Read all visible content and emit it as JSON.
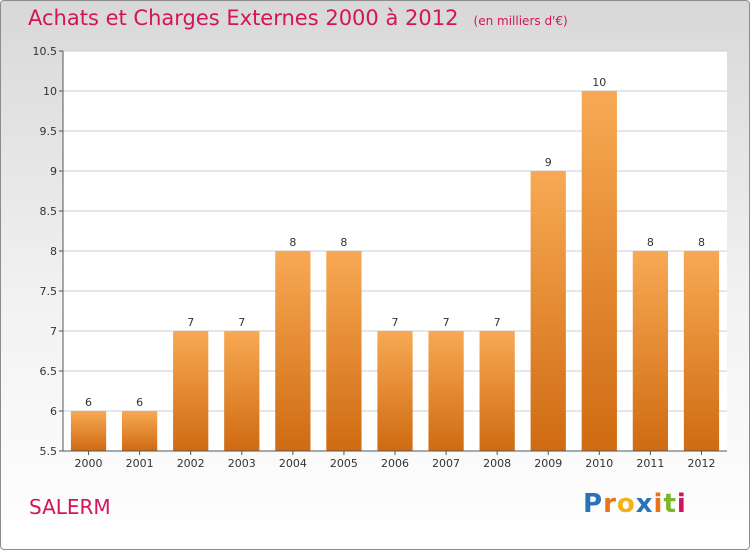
{
  "header": {
    "title": "Achats et Charges Externes 2000 à 2012",
    "subtitle": "(en milliers d'€)"
  },
  "footer": {
    "commune": "SALERM",
    "logo_text": "Proxiti",
    "logo_colors": [
      "#2b73b9",
      "#e8731b",
      "#f3b21a",
      "#2b73b9",
      "#e8731b",
      "#7bb626",
      "#d4145a"
    ]
  },
  "colors": {
    "bar_top": "#f8a954",
    "bar_bottom": "#cf6b12",
    "title": "#d4145a",
    "grid": "#cfcfcf",
    "axis": "#555555"
  },
  "chart_data": {
    "type": "bar",
    "categories": [
      "2000",
      "2001",
      "2002",
      "2003",
      "2004",
      "2005",
      "2006",
      "2007",
      "2008",
      "2009",
      "2010",
      "2011",
      "2012"
    ],
    "values": [
      6,
      6,
      7,
      7,
      8,
      8,
      7,
      7,
      7,
      9,
      10,
      8,
      8
    ],
    "ylim": [
      5.5,
      10.5
    ],
    "yticks": [
      "5.5",
      "6",
      "6.5",
      "7",
      "7.5",
      "8",
      "8.5",
      "9",
      "9.5",
      "10",
      "10.5"
    ],
    "grid": true,
    "data_labels": true
  }
}
